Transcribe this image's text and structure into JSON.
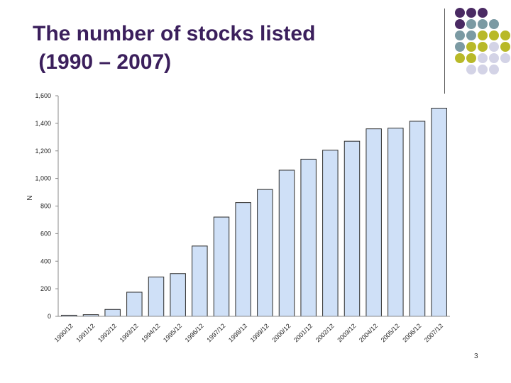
{
  "slide": {
    "title": "The number of stocks listed\n (1990 – 2007)",
    "page_number": "3"
  },
  "theme": {
    "title_color": "#3b1f5c",
    "dot_colors": {
      "P": "#4a2a63",
      "T": "#7b9aa3",
      "Y": "#b8b928",
      "L": "#d3d3e6"
    },
    "dot_grid": [
      "PPP  ",
      "PTTT ",
      "TTYYY",
      "TYYLY",
      "YYLLL",
      " LLL "
    ],
    "bar_fill": "#cfe0f7",
    "bar_stroke": "#2b2b2b"
  },
  "chart_data": {
    "type": "bar",
    "categories": [
      "1990/12",
      "1991/12",
      "1992/12",
      "1993/12",
      "1994/12",
      "1995/12",
      "1996/12",
      "1997/12",
      "1998/12",
      "1999/12",
      "2000/12",
      "2001/12",
      "2002/12",
      "2003/12",
      "2004/12",
      "2005/12",
      "2006/12",
      "2007/12"
    ],
    "values": [
      8,
      12,
      50,
      175,
      285,
      310,
      510,
      720,
      825,
      920,
      1060,
      1140,
      1205,
      1270,
      1360,
      1365,
      1415,
      1510
    ],
    "ylabel": "N",
    "ylim": [
      0,
      1600
    ],
    "yticks": [
      0,
      200,
      400,
      600,
      800,
      1000,
      1200,
      1400,
      1600
    ],
    "ytick_labels": [
      "0",
      "200",
      "400",
      "600",
      "800",
      "1,000",
      "1,200",
      "1,400",
      "1,600"
    ],
    "grid": false,
    "legend": "none"
  }
}
